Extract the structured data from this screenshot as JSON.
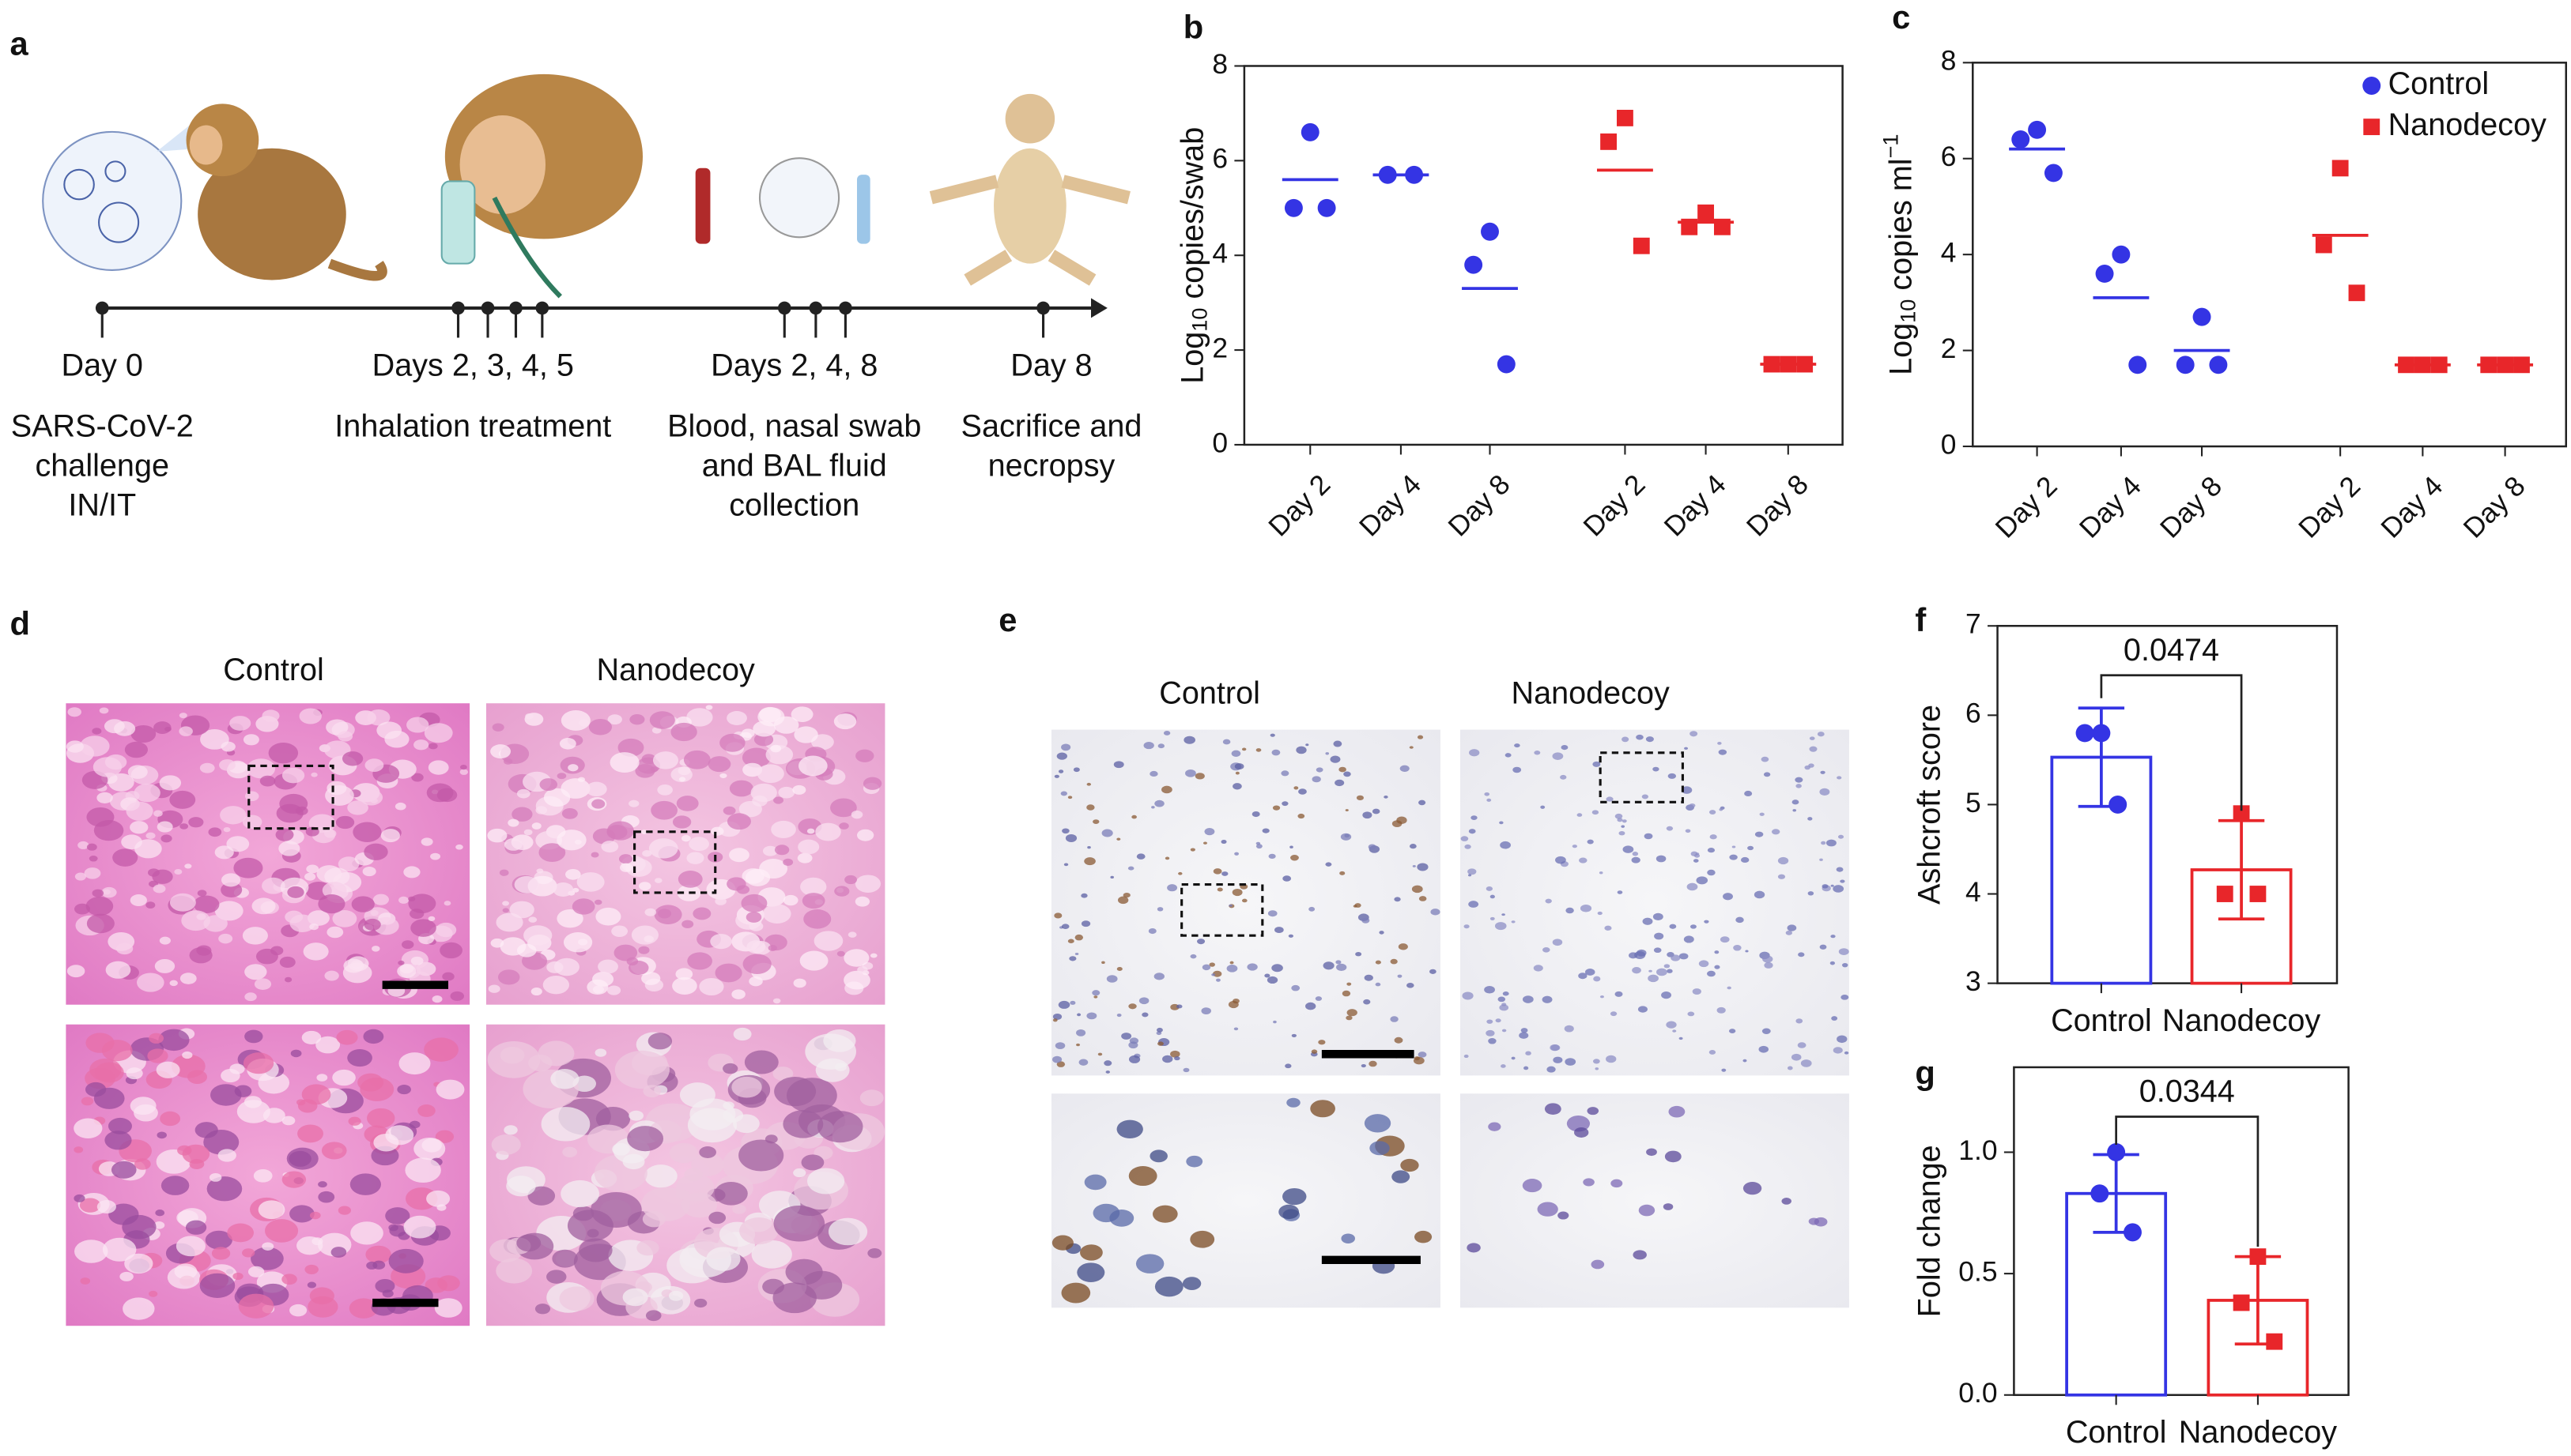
{
  "chart_data": [
    {
      "type": "dot",
      "panel": "b",
      "ylabel": [
        "Log",
        "10",
        " copies/swab"
      ],
      "categories": [
        "Day 2",
        "Day 4",
        "Day 8",
        "Day 2",
        "Day 4",
        "Day 8"
      ],
      "ylim": [
        0,
        8
      ],
      "yticks": [
        0,
        2,
        4,
        6,
        8
      ],
      "series": [
        {
          "color": "#3434e4",
          "marker": "circle",
          "values": [
            [
              6.6,
              5.0,
              5.0
            ],
            [
              5.7,
              5.7
            ],
            [
              4.5,
              3.8,
              1.7
            ],
            null,
            null,
            null
          ],
          "means": [
            5.6,
            5.7,
            3.3,
            null,
            null,
            null
          ]
        },
        {
          "color": "#e8262a",
          "marker": "square",
          "values": [
            null,
            null,
            null,
            [
              6.9,
              6.4,
              4.2
            ],
            [
              4.9,
              4.6,
              4.6
            ],
            [
              1.7,
              1.7,
              1.7
            ]
          ],
          "means": [
            null,
            null,
            null,
            5.8,
            4.7,
            1.7
          ]
        }
      ]
    },
    {
      "type": "dot",
      "panel": "c",
      "ylabel": [
        "Log",
        "10",
        " copies ml",
        "−1"
      ],
      "categories": [
        "Day 2",
        "Day 4",
        "Day 8",
        "Day 2",
        "Day 4",
        "Day 8"
      ],
      "ylim": [
        0,
        8
      ],
      "yticks": [
        0,
        2,
        4,
        6,
        8
      ],
      "legend": "top-right",
      "series": [
        {
          "name": "Control",
          "color": "#3434e4",
          "marker": "circle",
          "values": [
            [
              6.6,
              6.4,
              5.7
            ],
            [
              4.0,
              3.6,
              1.7
            ],
            [
              2.7,
              1.7,
              1.7
            ],
            null,
            null,
            null
          ],
          "means": [
            6.2,
            3.1,
            2.0,
            null,
            null,
            null
          ]
        },
        {
          "name": "Nanodecoy",
          "color": "#e8262a",
          "marker": "square",
          "values": [
            null,
            null,
            null,
            [
              5.8,
              4.2,
              3.2
            ],
            [
              1.7,
              1.7,
              1.7
            ],
            [
              1.7,
              1.7,
              1.7
            ]
          ],
          "means": [
            null,
            null,
            null,
            4.4,
            1.7,
            1.7
          ]
        }
      ]
    },
    {
      "type": "bar",
      "panel": "f",
      "ylabel": "Ashcroft score",
      "categories": [
        "Control",
        "Nanodecoy"
      ],
      "colors": [
        "#3434e4",
        "#e8262a"
      ],
      "markers": [
        "circle",
        "square"
      ],
      "values": [
        5.53,
        4.27
      ],
      "errors": [
        0.55,
        0.55
      ],
      "points": [
        [
          5.8,
          5.8,
          5.0
        ],
        [
          4.9,
          4.0,
          4.0
        ]
      ],
      "ylim": [
        3,
        7
      ],
      "yticks": [
        3,
        4,
        5,
        6,
        7
      ],
      "annotation": "0.0474"
    },
    {
      "type": "bar",
      "panel": "g",
      "ylabel": "Fold change",
      "categories": [
        "Control",
        "Nanodecoy"
      ],
      "colors": [
        "#3434e4",
        "#e8262a"
      ],
      "markers": [
        "circle",
        "square"
      ],
      "values": [
        0.83,
        0.39
      ],
      "errors": [
        0.16,
        0.18
      ],
      "points": [
        [
          1.0,
          0.83,
          0.67
        ],
        [
          0.57,
          0.38,
          0.22
        ]
      ],
      "ylim": [
        0,
        1.35
      ],
      "yticks": [
        {
          "value": 0,
          "label": "0.0"
        },
        {
          "value": 0.5,
          "label": "0.5"
        },
        {
          "value": 1,
          "label": "1.0"
        }
      ],
      "annotation": "0.0344"
    }
  ],
  "panel_a": {
    "label": "a",
    "events": [
      {
        "date": "Day 0",
        "description": [
          "SARS-CoV-2",
          "challenge",
          "IN/IT"
        ]
      },
      {
        "date": "Days 2, 3, 4, 5",
        "description": [
          "Inhalation treatment"
        ]
      },
      {
        "date": "Days 2, 4, 8",
        "description": [
          "Blood, nasal swab",
          "and BAL fluid",
          "collection"
        ]
      },
      {
        "date": "Day 8",
        "description": [
          "Sacrifice and",
          "necropsy"
        ]
      }
    ]
  },
  "panel_d": {
    "label": "d",
    "columns": [
      "Control",
      "Nanodecoy"
    ]
  },
  "panel_e": {
    "label": "e",
    "columns": [
      "Control",
      "Nanodecoy"
    ]
  }
}
